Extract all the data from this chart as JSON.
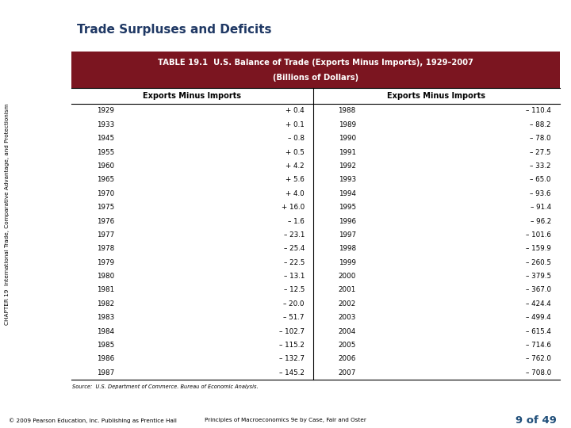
{
  "title": "Trade Surpluses and Deficits",
  "chapter_label": "CHAPTER 19  International Trade, Comparative Advantage, and Protectionism",
  "table_title_line1": "TABLE 19.1  U.S. Balance of Trade (Exports Minus Imports), 1929–2007",
  "table_title_line2": "(Billions of Dollars)",
  "col_header": "Exports Minus Imports",
  "left_data": [
    [
      "1929",
      "+ 0.4"
    ],
    [
      "1933",
      "+ 0.1"
    ],
    [
      "1945",
      "– 0.8"
    ],
    [
      "1955",
      "+ 0.5"
    ],
    [
      "1960",
      "+ 4.2"
    ],
    [
      "1965",
      "+ 5.6"
    ],
    [
      "1970",
      "+ 4.0"
    ],
    [
      "1975",
      "+ 16.0"
    ],
    [
      "1976",
      "– 1.6"
    ],
    [
      "1977",
      "– 23.1"
    ],
    [
      "1978",
      "– 25.4"
    ],
    [
      "1979",
      "– 22.5"
    ],
    [
      "1980",
      "– 13.1"
    ],
    [
      "1981",
      "– 12.5"
    ],
    [
      "1982",
      "– 20.0"
    ],
    [
      "1983",
      "– 51.7"
    ],
    [
      "1984",
      "– 102.7"
    ],
    [
      "1985",
      "– 115.2"
    ],
    [
      "1986",
      "– 132.7"
    ],
    [
      "1987",
      "– 145.2"
    ]
  ],
  "right_data": [
    [
      "1988",
      "– 110.4"
    ],
    [
      "1989",
      "– 88.2"
    ],
    [
      "1990",
      "– 78.0"
    ],
    [
      "1991",
      "– 27.5"
    ],
    [
      "1992",
      "– 33.2"
    ],
    [
      "1993",
      "– 65.0"
    ],
    [
      "1994",
      "– 93.6"
    ],
    [
      "1995",
      "– 91.4"
    ],
    [
      "1996",
      "– 96.2"
    ],
    [
      "1997",
      "– 101.6"
    ],
    [
      "1998",
      "– 159.9"
    ],
    [
      "1999",
      "– 260.5"
    ],
    [
      "2000",
      "– 379.5"
    ],
    [
      "2001",
      "– 367.0"
    ],
    [
      "2002",
      "– 424.4"
    ],
    [
      "2003",
      "– 499.4"
    ],
    [
      "2004",
      "– 615.4"
    ],
    [
      "2005",
      "– 714.6"
    ],
    [
      "2006",
      "– 762.0"
    ],
    [
      "2007",
      "– 708.0"
    ]
  ],
  "source_text": "Source:  U.S. Department of Commerce. Bureau of Economic Analysis.",
  "footer_left": "© 2009 Pearson Education, Inc. Publishing as Prentice Hall",
  "footer_right": "Principles of Macroeconomics 9e by Case, Fair and Oster",
  "footer_page": "9 of 49",
  "header_bg_color": "#7B1520",
  "header_text_color": "#FFFFFF",
  "title_color": "#1F3864",
  "bg_color": "#FFFFFF",
  "border_color": "#000000",
  "chapter_text_color": "#000000",
  "footer_page_color": "#1F4E79"
}
